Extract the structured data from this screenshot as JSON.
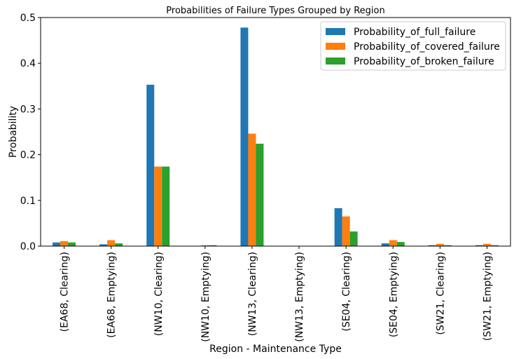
{
  "chart_data": {
    "type": "bar",
    "title": "Probabilities of Failure Types Grouped by Region",
    "xlabel": "Region - Maintenance Type",
    "ylabel": "Probability",
    "ylim": [
      0,
      0.5
    ],
    "yticks": [
      "0.0",
      "0.1",
      "0.2",
      "0.3",
      "0.4",
      "0.5"
    ],
    "categories": [
      "(EA68, Clearing)",
      "(EA68, Emptying)",
      "(NW10, Clearing)",
      "(NW10, Emptying)",
      "(NW13, Clearing)",
      "(NW13, Emptying)",
      "(SE04, Clearing)",
      "(SE04, Emptying)",
      "(SW21, Clearing)",
      "(SW21, Emptying)"
    ],
    "series": [
      {
        "name": "Probability_of_full_failure",
        "color": "#1f77b4",
        "values": [
          0.008,
          0.004,
          0.353,
          0.0,
          0.478,
          0.0,
          0.083,
          0.006,
          0.002,
          0.002
        ]
      },
      {
        "name": "Probability_of_covered_failure",
        "color": "#ff7f0e",
        "values": [
          0.011,
          0.013,
          0.174,
          0.002,
          0.246,
          0.0,
          0.065,
          0.013,
          0.005,
          0.005
        ]
      },
      {
        "name": "Probability_of_broken_failure",
        "color": "#2ca02c",
        "values": [
          0.008,
          0.006,
          0.174,
          0.002,
          0.224,
          0.0,
          0.032,
          0.009,
          0.002,
          0.002
        ]
      }
    ],
    "grid": false,
    "legend": "top-right"
  }
}
